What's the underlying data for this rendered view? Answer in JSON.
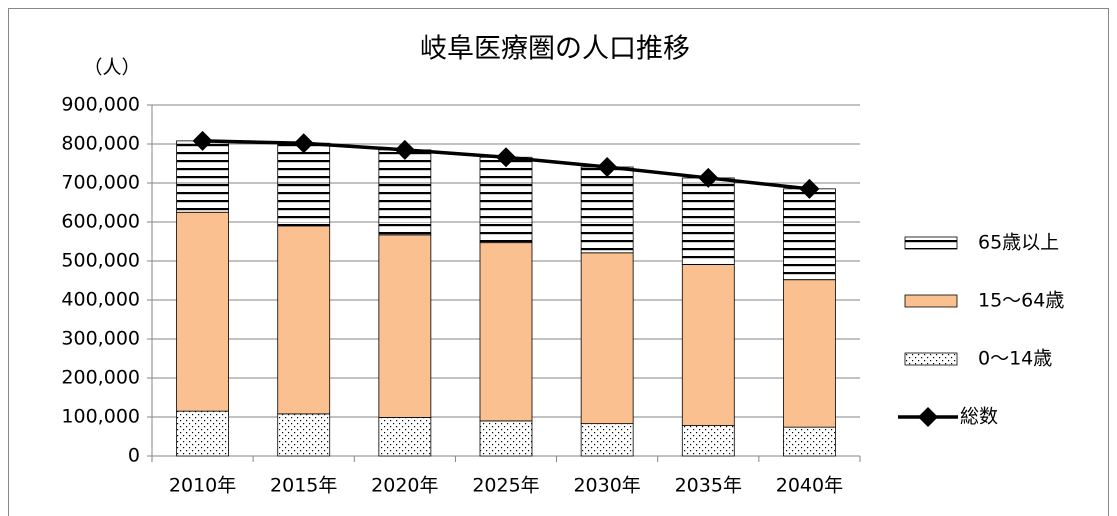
{
  "chart_data": {
    "type": "bar",
    "stacked": true,
    "title": "岐阜医療圏の人口推移",
    "y_label": "（人）",
    "categories": [
      "2010年",
      "2015年",
      "2020年",
      "2025年",
      "2030年",
      "2035年",
      "2040年"
    ],
    "series": [
      {
        "name": "0〜14歳",
        "color": "#000000",
        "pattern": "dots",
        "values": [
          115000,
          108000,
          99000,
          90000,
          83000,
          78000,
          74000
        ]
      },
      {
        "name": "15〜64歳",
        "color": "#fac090",
        "pattern": "solid",
        "values": [
          510000,
          482000,
          468000,
          457000,
          438000,
          413000,
          378000
        ]
      },
      {
        "name": "65歳以上",
        "color": "#000000",
        "pattern": "stripes",
        "values": [
          183000,
          212000,
          218000,
          219000,
          220000,
          222000,
          233000
        ]
      },
      {
        "name": "総数",
        "type": "line",
        "color": "#000000",
        "values": [
          808000,
          802000,
          785000,
          766000,
          741000,
          713000,
          685000
        ]
      }
    ],
    "ylim": [
      0,
      900000
    ],
    "yticks": [
      0,
      {
        "value": 100000,
        "label": "100,000"
      },
      {
        "value": 200000,
        "label": "200,000"
      },
      {
        "value": 300000,
        "label": "300,000"
      },
      {
        "value": 400000,
        "label": "400,000"
      },
      {
        "value": 500000,
        "label": "500,000"
      },
      {
        "value": 600000,
        "label": "600,000"
      },
      {
        "value": 700000,
        "label": "700,000"
      },
      {
        "value": 800000,
        "label": "800,000"
      },
      {
        "value": 900000,
        "label": "900,000"
      }
    ],
    "grid": true,
    "legend": "right"
  }
}
